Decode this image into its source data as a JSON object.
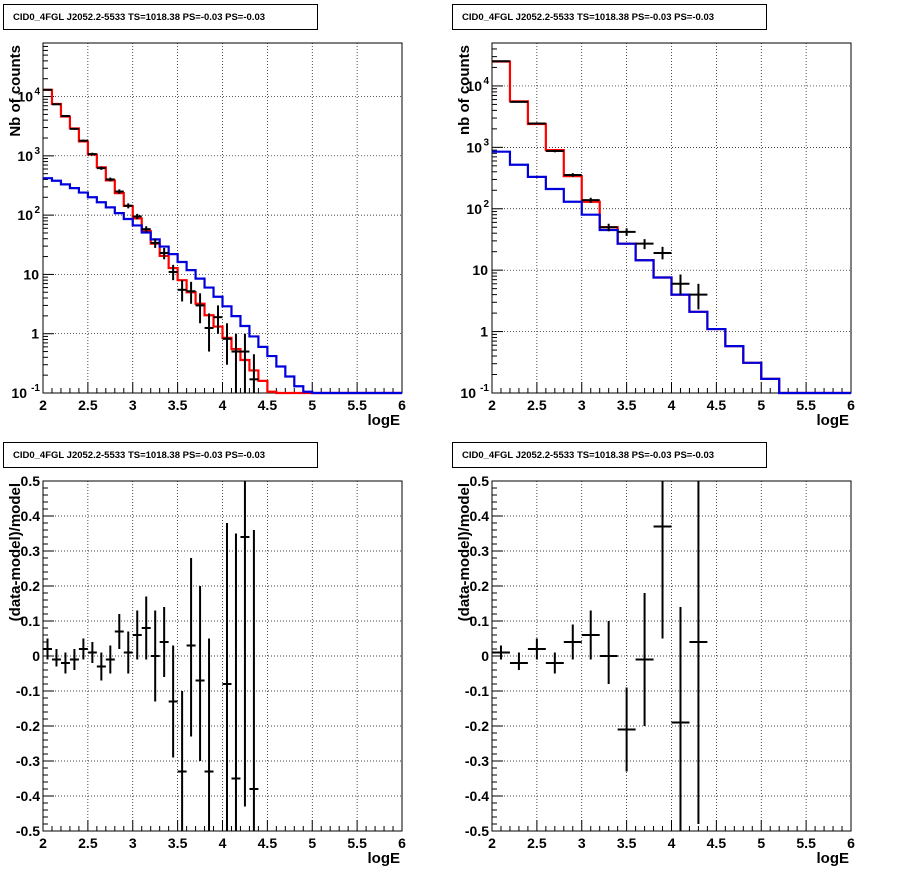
{
  "chart_data": [
    {
      "type": "line",
      "title": "CID0_4FGL J2052.2-5533 TS=1018.38 PS=-0.03 PS=-0.03",
      "xlabel": "logE",
      "ylabel": "Nb of counts",
      "log_y": true,
      "xlim": [
        2,
        6
      ],
      "ylim": [
        0.1,
        80000
      ],
      "grid": true,
      "x_ticks": [
        "2",
        "2.5",
        "3",
        "3.5",
        "4",
        "4.5",
        "5",
        "5.5",
        "6"
      ],
      "y_ticks": [
        "10^-1",
        "1",
        "10",
        "10^2",
        "10^3",
        "10^4"
      ],
      "bin_edges": [
        2.0,
        2.1,
        2.2,
        2.3,
        2.4,
        2.5,
        2.6,
        2.7,
        2.8,
        2.9,
        3.0,
        3.1,
        3.2,
        3.3,
        3.4,
        3.5,
        3.6,
        3.7,
        3.8,
        3.9,
        4.0,
        4.1,
        4.2,
        4.3,
        4.4,
        4.5,
        4.6,
        4.7,
        4.8,
        4.9,
        5.0,
        5.1,
        5.2,
        5.3,
        5.4,
        5.5,
        5.6,
        5.7,
        5.8,
        5.9,
        6.0
      ],
      "series": [
        {
          "color": "#ff0000",
          "values": [
            13000,
            7500,
            4600,
            2900,
            1750,
            1050,
            640,
            385,
            235,
            143,
            88,
            54,
            33,
            20.5,
            12.8,
            8.0,
            5.0,
            3.2,
            2.05,
            1.32,
            0.85,
            0.55,
            0.36,
            0.24,
            0.16,
            0.105,
            0.1,
            0.1,
            0.1,
            0.1,
            0.1,
            0.1,
            0.1,
            0.1,
            0.1,
            0.1,
            0.1,
            0.1,
            0.1,
            0.1
          ]
        },
        {
          "color": "#0000dd",
          "values": [
            420,
            380,
            330,
            285,
            240,
            200,
            165,
            135,
            108,
            86,
            67,
            51,
            39,
            29.5,
            22,
            16.2,
            11.8,
            8.5,
            6.0,
            4.2,
            2.9,
            1.98,
            1.35,
            0.9,
            0.6,
            0.42,
            0.28,
            0.19,
            0.13,
            0.105,
            0.1,
            0.1,
            0.1,
            0.1,
            0.1,
            0.1,
            0.1,
            0.1,
            0.1,
            0.1
          ]
        }
      ],
      "points": [
        {
          "x": 2.05,
          "y": 13000,
          "lo": 12700,
          "hi": 13300
        },
        {
          "x": 2.15,
          "y": 7400,
          "lo": 7200,
          "hi": 7600
        },
        {
          "x": 2.25,
          "y": 4700,
          "lo": 4550,
          "hi": 4850
        },
        {
          "x": 2.35,
          "y": 2850,
          "lo": 2750,
          "hi": 2950
        },
        {
          "x": 2.45,
          "y": 1800,
          "lo": 1720,
          "hi": 1880
        },
        {
          "x": 2.55,
          "y": 1070,
          "lo": 1010,
          "hi": 1130
        },
        {
          "x": 2.65,
          "y": 620,
          "lo": 580,
          "hi": 660
        },
        {
          "x": 2.75,
          "y": 400,
          "lo": 370,
          "hi": 430
        },
        {
          "x": 2.85,
          "y": 250,
          "lo": 228,
          "hi": 272
        },
        {
          "x": 2.95,
          "y": 144,
          "lo": 130,
          "hi": 158
        },
        {
          "x": 3.05,
          "y": 95,
          "lo": 85,
          "hi": 105
        },
        {
          "x": 3.15,
          "y": 58,
          "lo": 51,
          "hi": 65
        },
        {
          "x": 3.25,
          "y": 34,
          "lo": 28,
          "hi": 40
        },
        {
          "x": 3.35,
          "y": 23,
          "lo": 18,
          "hi": 28
        },
        {
          "x": 3.45,
          "y": 11,
          "lo": 8,
          "hi": 14.5
        },
        {
          "x": 3.55,
          "y": 5.5,
          "lo": 3.5,
          "hi": 8
        },
        {
          "x": 3.65,
          "y": 5.2,
          "lo": 3.2,
          "hi": 7.5
        },
        {
          "x": 3.75,
          "y": 3.0,
          "lo": 1.5,
          "hi": 4.8
        },
        {
          "x": 3.85,
          "y": 1.25,
          "lo": 0.5,
          "hi": 2.2
        },
        {
          "x": 3.95,
          "y": 1.9,
          "lo": 1.0,
          "hi": 3.0
        },
        {
          "x": 4.05,
          "y": 0.82,
          "lo": 0.3,
          "hi": 1.5
        },
        {
          "x": 4.15,
          "y": 0.5,
          "lo": 0.1,
          "hi": 1.0
        },
        {
          "x": 4.25,
          "y": 0.5,
          "lo": 0.1,
          "hi": 1.0
        },
        {
          "x": 4.35,
          "y": 0.17,
          "lo": 0.1,
          "hi": 0.45
        }
      ]
    },
    {
      "type": "line",
      "title": "CID0_4FGL J2052.2-5533 TS=1018.38 PS=-0.03 PS=-0.03",
      "xlabel": "logE",
      "ylabel": "nb of counts",
      "log_y": true,
      "xlim": [
        2,
        6
      ],
      "ylim": [
        0.1,
        50000
      ],
      "grid": true,
      "x_ticks": [
        "2",
        "2.5",
        "3",
        "3.5",
        "4",
        "4.5",
        "5",
        "5.5",
        "6"
      ],
      "y_ticks": [
        "10^-1",
        "1",
        "10",
        "10^2",
        "10^3",
        "10^4"
      ],
      "bin_edges": [
        2.0,
        2.2,
        2.4,
        2.6,
        2.8,
        3.0,
        3.2,
        3.4,
        3.6,
        3.8,
        4.0,
        4.2,
        4.4,
        4.6,
        4.8,
        5.0,
        5.2,
        5.4,
        5.6,
        5.8,
        6.0
      ],
      "series": [
        {
          "color": "#ff0000",
          "values": [
            25000,
            5600,
            2400,
            900,
            340,
            130,
            50,
            27,
            14.5,
            7.6,
            4.0,
            2.1,
            1.1,
            0.58,
            0.31,
            0.17,
            0.1,
            0.1,
            0.1,
            0.1
          ]
        },
        {
          "color": "#0000dd",
          "values": [
            850,
            520,
            330,
            210,
            130,
            80,
            45,
            27,
            14.5,
            7.6,
            4.0,
            2.1,
            1.1,
            0.58,
            0.31,
            0.17,
            0.1,
            0.1,
            0.1,
            0.1
          ]
        }
      ],
      "points": [
        {
          "x": 2.1,
          "y": 25200,
          "lo": 24700,
          "hi": 25700
        },
        {
          "x": 2.3,
          "y": 5500,
          "lo": 5350,
          "hi": 5650
        },
        {
          "x": 2.5,
          "y": 2450,
          "lo": 2350,
          "hi": 2550
        },
        {
          "x": 2.7,
          "y": 870,
          "lo": 830,
          "hi": 910
        },
        {
          "x": 2.9,
          "y": 355,
          "lo": 330,
          "hi": 380
        },
        {
          "x": 3.1,
          "y": 138,
          "lo": 125,
          "hi": 151
        },
        {
          "x": 3.3,
          "y": 50,
          "lo": 43,
          "hi": 57
        },
        {
          "x": 3.5,
          "y": 42,
          "lo": 36,
          "hi": 48
        },
        {
          "x": 3.7,
          "y": 27,
          "lo": 22,
          "hi": 32
        },
        {
          "x": 3.9,
          "y": 19,
          "lo": 15,
          "hi": 24
        },
        {
          "x": 4.1,
          "y": 6,
          "lo": 4,
          "hi": 8.5
        },
        {
          "x": 4.3,
          "y": 4,
          "lo": 2.3,
          "hi": 6
        }
      ]
    },
    {
      "type": "scatter",
      "title": "CID0_4FGL J2052.2-5533 TS=1018.38 PS=-0.03 PS=-0.03",
      "xlabel": "logE",
      "ylabel": "(data-model)/model",
      "xlim": [
        2,
        6
      ],
      "ylim": [
        -0.5,
        0.5
      ],
      "grid": true,
      "x_ticks": [
        "2",
        "2.5",
        "3",
        "3.5",
        "4",
        "4.5",
        "5",
        "5.5",
        "6"
      ],
      "y_ticks": [
        "-0.5",
        "-0.4",
        "-0.3",
        "-0.2",
        "-0.1",
        "0",
        "0.1",
        "0.2",
        "0.3",
        "0.4",
        "0.5"
      ],
      "x_halfwidth": 0.05,
      "points": [
        {
          "x": 2.05,
          "y": 0.02,
          "lo": -0.01,
          "hi": 0.05
        },
        {
          "x": 2.15,
          "y": -0.01,
          "lo": -0.03,
          "hi": 0.02
        },
        {
          "x": 2.25,
          "y": -0.02,
          "lo": -0.05,
          "hi": 0.01
        },
        {
          "x": 2.35,
          "y": -0.01,
          "lo": -0.04,
          "hi": 0.02
        },
        {
          "x": 2.45,
          "y": 0.02,
          "lo": -0.01,
          "hi": 0.05
        },
        {
          "x": 2.55,
          "y": 0.01,
          "lo": -0.02,
          "hi": 0.04
        },
        {
          "x": 2.65,
          "y": -0.03,
          "lo": -0.07,
          "hi": 0.01
        },
        {
          "x": 2.75,
          "y": -0.01,
          "lo": -0.05,
          "hi": 0.03
        },
        {
          "x": 2.85,
          "y": 0.07,
          "lo": 0.02,
          "hi": 0.12
        },
        {
          "x": 2.95,
          "y": 0.01,
          "lo": -0.05,
          "hi": 0.07
        },
        {
          "x": 3.05,
          "y": 0.06,
          "lo": -0.01,
          "hi": 0.13
        },
        {
          "x": 3.15,
          "y": 0.08,
          "lo": -0.01,
          "hi": 0.17
        },
        {
          "x": 3.25,
          "y": 0.0,
          "lo": -0.13,
          "hi": 0.13
        },
        {
          "x": 3.35,
          "y": 0.04,
          "lo": -0.06,
          "hi": 0.14
        },
        {
          "x": 3.45,
          "y": -0.13,
          "lo": -0.29,
          "hi": 0.03
        },
        {
          "x": 3.55,
          "y": -0.33,
          "lo": -0.55,
          "hi": -0.1
        },
        {
          "x": 3.65,
          "y": 0.03,
          "lo": -0.23,
          "hi": 0.28
        },
        {
          "x": 3.75,
          "y": -0.07,
          "lo": -0.3,
          "hi": 0.2
        },
        {
          "x": 3.85,
          "y": -0.33,
          "lo": -0.55,
          "hi": 0.05
        },
        {
          "x": 4.05,
          "y": -0.08,
          "lo": -0.55,
          "hi": 0.38
        },
        {
          "x": 4.15,
          "y": -0.35,
          "lo": -0.55,
          "hi": 0.35
        },
        {
          "x": 4.25,
          "y": 0.34,
          "lo": -0.43,
          "hi": 0.5
        },
        {
          "x": 4.35,
          "y": -0.38,
          "lo": -0.55,
          "hi": 0.36
        }
      ]
    },
    {
      "type": "scatter",
      "title": "CID0_4FGL J2052.2-5533 TS=1018.38 PS=-0.03 PS=-0.03",
      "xlabel": "logE",
      "ylabel": "(data-model)/model",
      "xlim": [
        2,
        6
      ],
      "ylim": [
        -0.5,
        0.5
      ],
      "grid": true,
      "x_ticks": [
        "2",
        "2.5",
        "3",
        "3.5",
        "4",
        "4.5",
        "5",
        "5.5",
        "6"
      ],
      "y_ticks": [
        "-0.5",
        "-0.4",
        "-0.3",
        "-0.2",
        "-0.1",
        "0",
        "0.1",
        "0.2",
        "0.3",
        "0.4",
        "0.5"
      ],
      "x_halfwidth": 0.1,
      "points": [
        {
          "x": 2.1,
          "y": 0.01,
          "lo": -0.01,
          "hi": 0.03
        },
        {
          "x": 2.3,
          "y": -0.02,
          "lo": -0.04,
          "hi": 0.01
        },
        {
          "x": 2.5,
          "y": 0.02,
          "lo": -0.01,
          "hi": 0.05
        },
        {
          "x": 2.7,
          "y": -0.02,
          "lo": -0.05,
          "hi": 0.01
        },
        {
          "x": 2.9,
          "y": 0.04,
          "lo": -0.01,
          "hi": 0.09
        },
        {
          "x": 3.1,
          "y": 0.06,
          "lo": -0.01,
          "hi": 0.13
        },
        {
          "x": 3.3,
          "y": 0.0,
          "lo": -0.08,
          "hi": 0.1
        },
        {
          "x": 3.5,
          "y": -0.21,
          "lo": -0.33,
          "hi": -0.09
        },
        {
          "x": 3.7,
          "y": -0.01,
          "lo": -0.2,
          "hi": 0.18
        },
        {
          "x": 3.9,
          "y": 0.37,
          "lo": 0.05,
          "hi": 0.5
        },
        {
          "x": 4.1,
          "y": -0.19,
          "lo": -0.55,
          "hi": 0.14
        },
        {
          "x": 4.3,
          "y": 0.04,
          "lo": -0.48,
          "hi": 0.5
        }
      ]
    }
  ]
}
